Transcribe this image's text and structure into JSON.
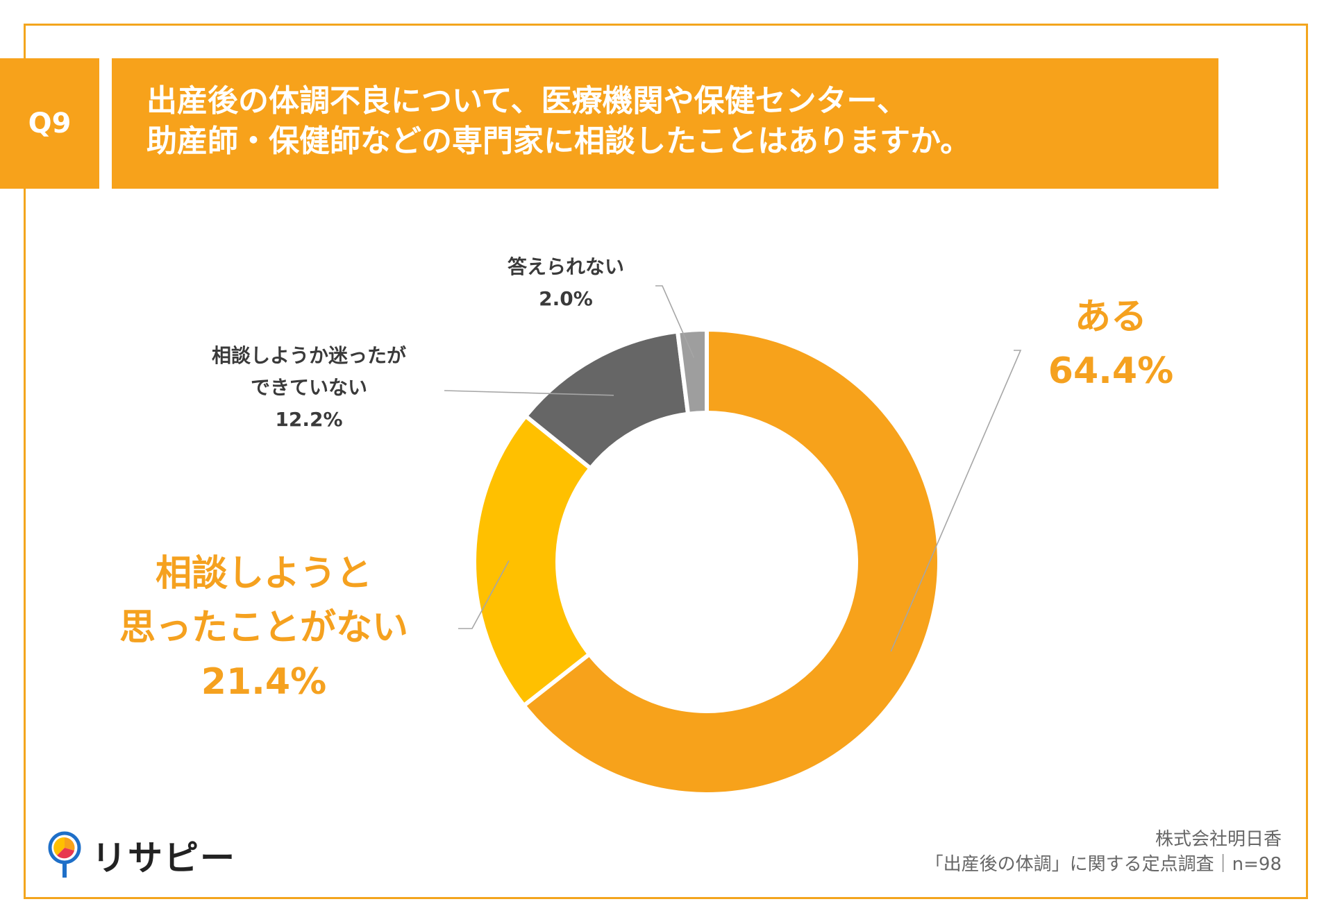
{
  "question": {
    "number": "Q9",
    "title_lines": [
      "出産後の体調不良について、医療機関や保健センター、",
      "助産師・保健師などの専門家に相談したことはありますか。"
    ]
  },
  "chart_data": {
    "type": "pie",
    "style": "donut",
    "categories": [
      "ある",
      "相談しようと思ったことがない",
      "相談しようか迷ったができていない",
      "答えられない"
    ],
    "values": [
      64.4,
      21.4,
      12.2,
      2.0
    ],
    "unit": "%",
    "colors": [
      "#F7A21B",
      "#FFC000",
      "#666666",
      "#9E9E9E"
    ],
    "labels": [
      {
        "lines": [
          "ある"
        ],
        "value": "64.4%"
      },
      {
        "lines": [
          "相談しようと",
          "思ったことがない"
        ],
        "value": "21.4%"
      },
      {
        "lines": [
          "相談しようか迷ったが",
          "できていない"
        ],
        "value": "12.2%"
      },
      {
        "lines": [
          "答えられない"
        ],
        "value": "2.0%"
      }
    ]
  },
  "source": {
    "line1": "株式会社明日香",
    "line2": "「出産後の体調」に関する定点調査｜n=98"
  },
  "logo": {
    "text": "リサピー",
    "accent_colors": [
      "#1E6FC8",
      "#F7A21B",
      "#E8384F",
      "#FFC000"
    ]
  },
  "colors": {
    "accent": "#F7A21B",
    "frame": "#F3A51D"
  }
}
